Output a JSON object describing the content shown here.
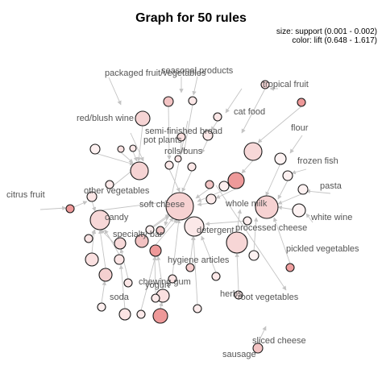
{
  "title": "Graph for 50 rules",
  "legend": {
    "size": "size: support (0.001 - 0.002)",
    "color": "color: lift (0.648 - 1.617)"
  },
  "items": [
    "packaged fruit/vegetables",
    "seasonal products",
    "tropical fruit",
    "cat food",
    "red/blush wine",
    "flour",
    "semi-finished bread",
    "pot plants",
    "rolls/buns",
    "frozen fish",
    "citrus fruit",
    "other vegetables",
    "pasta",
    "soft cheese",
    "whole milk",
    "candy",
    "white wine",
    "detergent",
    "processed cheese",
    "specialty bar",
    "pickled vegetables",
    "hygiene articles",
    "chewing gum",
    "yogurt",
    "herbs",
    "soda",
    "root vegetables",
    "sliced cheese",
    "sausage"
  ]
}
